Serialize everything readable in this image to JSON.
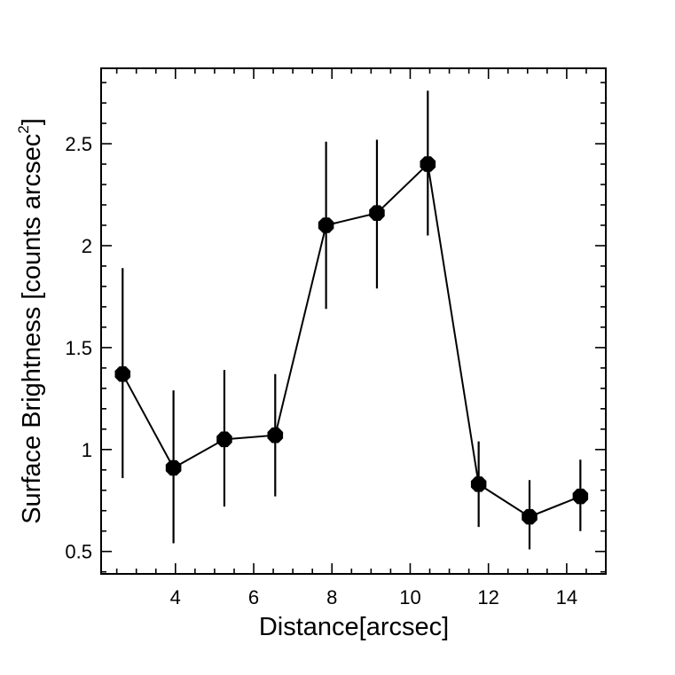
{
  "chart_data": {
    "type": "scatter",
    "title": "",
    "xlabel": "Distance[arcsec]",
    "ylabel_main": "Surface Brightness [counts arcsec",
    "ylabel_sup": "2",
    "ylabel_close": "]",
    "xlim": [
      2.1,
      15.0
    ],
    "ylim": [
      0.39,
      2.87
    ],
    "x_ticks": [
      4,
      6,
      8,
      10,
      12,
      14
    ],
    "x_tick_labels": [
      "4",
      "6",
      "8",
      "10",
      "12",
      "14"
    ],
    "y_ticks": [
      0.5,
      1,
      1.5,
      2,
      2.5
    ],
    "y_tick_labels": [
      "0.5",
      "1",
      "1.5",
      "2",
      "2.5"
    ],
    "grid": false,
    "connected": true,
    "series": [
      {
        "name": "surface brightness",
        "x": [
          2.65,
          3.95,
          5.25,
          6.55,
          7.85,
          9.15,
          10.45,
          11.75,
          13.05,
          14.35
        ],
        "y": [
          1.37,
          0.91,
          1.05,
          1.07,
          2.1,
          2.16,
          2.4,
          0.83,
          0.67,
          0.77
        ],
        "yerr_low": [
          0.86,
          0.54,
          0.72,
          0.77,
          1.69,
          1.79,
          2.05,
          0.62,
          0.51,
          0.6
        ],
        "yerr_high": [
          1.89,
          1.29,
          1.39,
          1.37,
          2.51,
          2.52,
          2.76,
          1.04,
          0.85,
          0.95
        ]
      }
    ]
  }
}
